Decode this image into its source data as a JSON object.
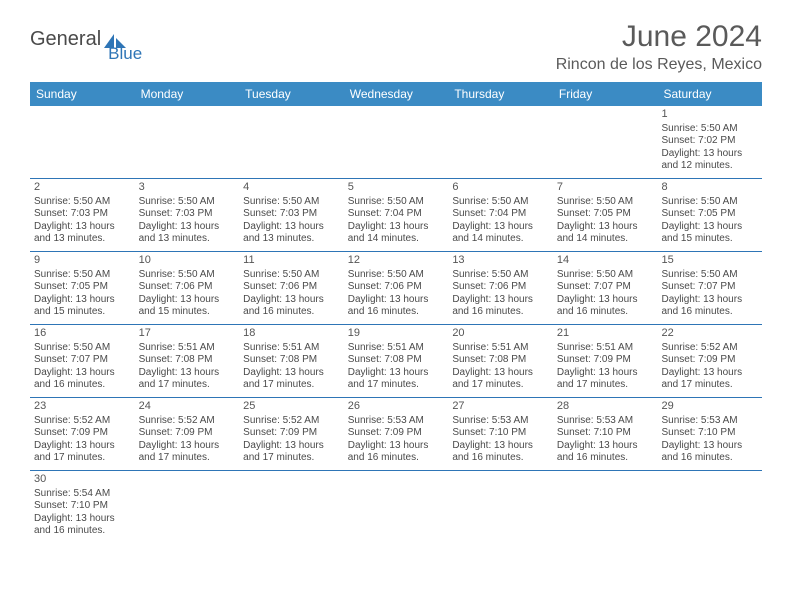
{
  "logo": {
    "text1": "General",
    "text2": "Blue",
    "icon_color": "#2e75b6"
  },
  "header": {
    "month_title": "June 2024",
    "location": "Rincon de los Reyes, Mexico"
  },
  "calendar": {
    "weekday_bg": "#3b8bc4",
    "weekday_fg": "#ffffff",
    "grid_line_color": "#2e75b6",
    "weekdays": [
      "Sunday",
      "Monday",
      "Tuesday",
      "Wednesday",
      "Thursday",
      "Friday",
      "Saturday"
    ],
    "weeks": [
      [
        null,
        null,
        null,
        null,
        null,
        null,
        {
          "n": "1",
          "sunrise": "Sunrise: 5:50 AM",
          "sunset": "Sunset: 7:02 PM",
          "day1": "Daylight: 13 hours",
          "day2": "and 12 minutes."
        }
      ],
      [
        {
          "n": "2",
          "sunrise": "Sunrise: 5:50 AM",
          "sunset": "Sunset: 7:03 PM",
          "day1": "Daylight: 13 hours",
          "day2": "and 13 minutes."
        },
        {
          "n": "3",
          "sunrise": "Sunrise: 5:50 AM",
          "sunset": "Sunset: 7:03 PM",
          "day1": "Daylight: 13 hours",
          "day2": "and 13 minutes."
        },
        {
          "n": "4",
          "sunrise": "Sunrise: 5:50 AM",
          "sunset": "Sunset: 7:03 PM",
          "day1": "Daylight: 13 hours",
          "day2": "and 13 minutes."
        },
        {
          "n": "5",
          "sunrise": "Sunrise: 5:50 AM",
          "sunset": "Sunset: 7:04 PM",
          "day1": "Daylight: 13 hours",
          "day2": "and 14 minutes."
        },
        {
          "n": "6",
          "sunrise": "Sunrise: 5:50 AM",
          "sunset": "Sunset: 7:04 PM",
          "day1": "Daylight: 13 hours",
          "day2": "and 14 minutes."
        },
        {
          "n": "7",
          "sunrise": "Sunrise: 5:50 AM",
          "sunset": "Sunset: 7:05 PM",
          "day1": "Daylight: 13 hours",
          "day2": "and 14 minutes."
        },
        {
          "n": "8",
          "sunrise": "Sunrise: 5:50 AM",
          "sunset": "Sunset: 7:05 PM",
          "day1": "Daylight: 13 hours",
          "day2": "and 15 minutes."
        }
      ],
      [
        {
          "n": "9",
          "sunrise": "Sunrise: 5:50 AM",
          "sunset": "Sunset: 7:05 PM",
          "day1": "Daylight: 13 hours",
          "day2": "and 15 minutes."
        },
        {
          "n": "10",
          "sunrise": "Sunrise: 5:50 AM",
          "sunset": "Sunset: 7:06 PM",
          "day1": "Daylight: 13 hours",
          "day2": "and 15 minutes."
        },
        {
          "n": "11",
          "sunrise": "Sunrise: 5:50 AM",
          "sunset": "Sunset: 7:06 PM",
          "day1": "Daylight: 13 hours",
          "day2": "and 16 minutes."
        },
        {
          "n": "12",
          "sunrise": "Sunrise: 5:50 AM",
          "sunset": "Sunset: 7:06 PM",
          "day1": "Daylight: 13 hours",
          "day2": "and 16 minutes."
        },
        {
          "n": "13",
          "sunrise": "Sunrise: 5:50 AM",
          "sunset": "Sunset: 7:06 PM",
          "day1": "Daylight: 13 hours",
          "day2": "and 16 minutes."
        },
        {
          "n": "14",
          "sunrise": "Sunrise: 5:50 AM",
          "sunset": "Sunset: 7:07 PM",
          "day1": "Daylight: 13 hours",
          "day2": "and 16 minutes."
        },
        {
          "n": "15",
          "sunrise": "Sunrise: 5:50 AM",
          "sunset": "Sunset: 7:07 PM",
          "day1": "Daylight: 13 hours",
          "day2": "and 16 minutes."
        }
      ],
      [
        {
          "n": "16",
          "sunrise": "Sunrise: 5:50 AM",
          "sunset": "Sunset: 7:07 PM",
          "day1": "Daylight: 13 hours",
          "day2": "and 16 minutes."
        },
        {
          "n": "17",
          "sunrise": "Sunrise: 5:51 AM",
          "sunset": "Sunset: 7:08 PM",
          "day1": "Daylight: 13 hours",
          "day2": "and 17 minutes."
        },
        {
          "n": "18",
          "sunrise": "Sunrise: 5:51 AM",
          "sunset": "Sunset: 7:08 PM",
          "day1": "Daylight: 13 hours",
          "day2": "and 17 minutes."
        },
        {
          "n": "19",
          "sunrise": "Sunrise: 5:51 AM",
          "sunset": "Sunset: 7:08 PM",
          "day1": "Daylight: 13 hours",
          "day2": "and 17 minutes."
        },
        {
          "n": "20",
          "sunrise": "Sunrise: 5:51 AM",
          "sunset": "Sunset: 7:08 PM",
          "day1": "Daylight: 13 hours",
          "day2": "and 17 minutes."
        },
        {
          "n": "21",
          "sunrise": "Sunrise: 5:51 AM",
          "sunset": "Sunset: 7:09 PM",
          "day1": "Daylight: 13 hours",
          "day2": "and 17 minutes."
        },
        {
          "n": "22",
          "sunrise": "Sunrise: 5:52 AM",
          "sunset": "Sunset: 7:09 PM",
          "day1": "Daylight: 13 hours",
          "day2": "and 17 minutes."
        }
      ],
      [
        {
          "n": "23",
          "sunrise": "Sunrise: 5:52 AM",
          "sunset": "Sunset: 7:09 PM",
          "day1": "Daylight: 13 hours",
          "day2": "and 17 minutes."
        },
        {
          "n": "24",
          "sunrise": "Sunrise: 5:52 AM",
          "sunset": "Sunset: 7:09 PM",
          "day1": "Daylight: 13 hours",
          "day2": "and 17 minutes."
        },
        {
          "n": "25",
          "sunrise": "Sunrise: 5:52 AM",
          "sunset": "Sunset: 7:09 PM",
          "day1": "Daylight: 13 hours",
          "day2": "and 17 minutes."
        },
        {
          "n": "26",
          "sunrise": "Sunrise: 5:53 AM",
          "sunset": "Sunset: 7:09 PM",
          "day1": "Daylight: 13 hours",
          "day2": "and 16 minutes."
        },
        {
          "n": "27",
          "sunrise": "Sunrise: 5:53 AM",
          "sunset": "Sunset: 7:10 PM",
          "day1": "Daylight: 13 hours",
          "day2": "and 16 minutes."
        },
        {
          "n": "28",
          "sunrise": "Sunrise: 5:53 AM",
          "sunset": "Sunset: 7:10 PM",
          "day1": "Daylight: 13 hours",
          "day2": "and 16 minutes."
        },
        {
          "n": "29",
          "sunrise": "Sunrise: 5:53 AM",
          "sunset": "Sunset: 7:10 PM",
          "day1": "Daylight: 13 hours",
          "day2": "and 16 minutes."
        }
      ],
      [
        {
          "n": "30",
          "sunrise": "Sunrise: 5:54 AM",
          "sunset": "Sunset: 7:10 PM",
          "day1": "Daylight: 13 hours",
          "day2": "and 16 minutes."
        },
        null,
        null,
        null,
        null,
        null,
        null
      ]
    ]
  }
}
